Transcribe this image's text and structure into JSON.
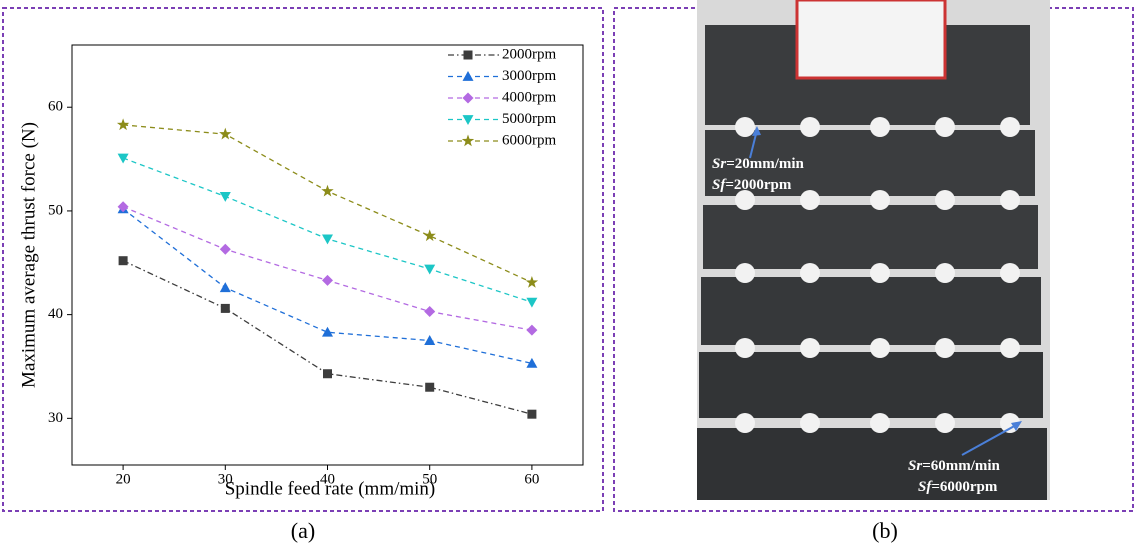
{
  "chart_data": {
    "type": "line",
    "x_label": "Spindle feed rate (mm/min)",
    "y_label": "Maximum average thrust force (N)",
    "x": [
      20,
      30,
      40,
      50,
      60
    ],
    "xlim": [
      15,
      65
    ],
    "xticks": [
      20,
      30,
      40,
      50,
      60
    ],
    "ylim": [
      25.5,
      66
    ],
    "yticks": [
      30,
      40,
      50,
      60
    ],
    "legend": "upper right",
    "series": [
      {
        "name": "2000rpm",
        "color": "#3d3d3d",
        "marker": "square",
        "linestyle": "dashdot",
        "values": [
          45.2,
          40.6,
          34.3,
          33.0,
          30.4
        ]
      },
      {
        "name": "3000rpm",
        "color": "#1f6fd8",
        "marker": "triangle",
        "linestyle": "dashed",
        "values": [
          50.2,
          42.6,
          38.3,
          37.5,
          35.3
        ]
      },
      {
        "name": "4000rpm",
        "color": "#b36ae2",
        "marker": "diamond",
        "linestyle": "dashed",
        "values": [
          50.4,
          46.3,
          43.3,
          40.3,
          38.5
        ]
      },
      {
        "name": "5000rpm",
        "color": "#1cc6c6",
        "marker": "triangle-down",
        "linestyle": "dashed",
        "values": [
          55.1,
          51.4,
          47.3,
          44.4,
          41.2
        ]
      },
      {
        "name": "6000rpm",
        "color": "#8c8c1a",
        "marker": "star",
        "linestyle": "dashed",
        "values": [
          58.3,
          57.4,
          51.9,
          47.6,
          43.1
        ]
      }
    ]
  },
  "panel_labels": [
    "(a)",
    "(b)"
  ],
  "photo_annotations": [
    {
      "var": "Sr",
      "text": "=20mm/min"
    },
    {
      "var": "Sf",
      "text": "=2000rpm"
    },
    {
      "var": "Sr",
      "text": "=60mm/min"
    },
    {
      "var": "Sf",
      "text": "=6000rpm"
    }
  ]
}
